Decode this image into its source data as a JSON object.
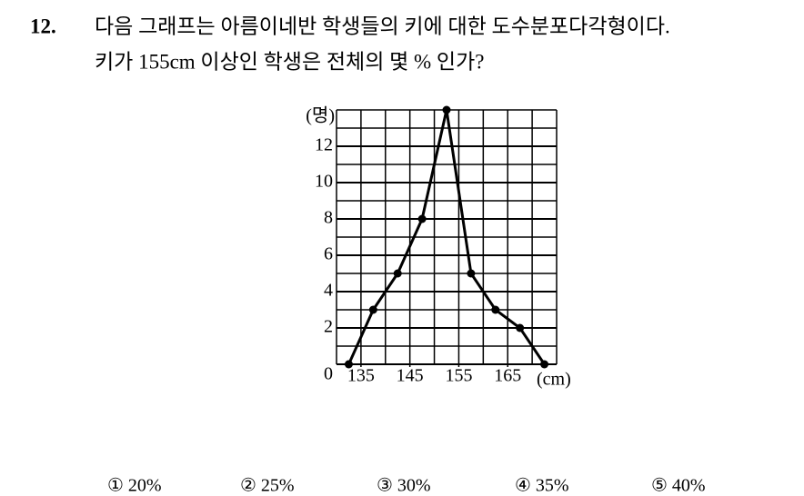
{
  "question": {
    "number": "12.",
    "lines": [
      "다음 그래프는 아름이네반 학생들의 키에 대한 도수분포다각형이다.",
      "키가 155cm 이상인 학생은 전체의 몇 % 인가?"
    ]
  },
  "chart_data": {
    "type": "line",
    "x_label": "(cm)",
    "y_label": "(명)",
    "x": [
      132.5,
      137.5,
      142.5,
      147.5,
      152.5,
      157.5,
      162.5,
      167.5,
      172.5
    ],
    "values": [
      0,
      3,
      5,
      8,
      14,
      5,
      3,
      2,
      0
    ],
    "color": "#000000",
    "xlim": [
      130,
      175
    ],
    "ylim": [
      0,
      14
    ],
    "xticks": [
      135,
      145,
      155,
      165
    ],
    "yticks": [
      0,
      2,
      4,
      6,
      8,
      10,
      12
    ],
    "grid": true
  },
  "choices": [
    "① 20%",
    "② 25%",
    "③ 30%",
    "④ 35%",
    "⑤ 40%"
  ]
}
